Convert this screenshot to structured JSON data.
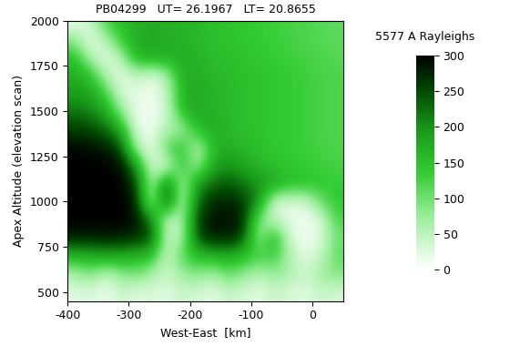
{
  "chart_data": {
    "type": "heatmap",
    "title": "PB04299   UT= 26.1967   LT= 20.8655",
    "xlabel": "West-East  [km]",
    "ylabel": "Apex Altitude (elevation scan)",
    "xlim": [
      -400,
      50
    ],
    "ylim": [
      450,
      2000
    ],
    "xticks": [
      -400,
      -300,
      -200,
      -100,
      0
    ],
    "yticks": [
      500,
      750,
      1000,
      1250,
      1500,
      1750,
      2000
    ],
    "x_edges": [
      -400,
      50
    ],
    "y_edges": [
      450,
      2050
    ],
    "cells": [
      [
        20,
        30,
        10,
        40,
        20,
        30,
        20,
        40,
        30,
        20,
        40,
        30,
        20,
        40,
        30,
        20,
        40,
        30
      ],
      [
        60,
        90,
        40,
        80,
        100,
        60,
        40,
        70,
        90,
        60,
        110,
        80,
        50,
        80,
        60,
        40,
        70,
        90
      ],
      [
        160,
        170,
        180,
        175,
        160,
        150,
        30,
        120,
        150,
        160,
        170,
        150,
        130,
        130,
        60,
        20,
        40,
        110
      ],
      [
        280,
        280,
        280,
        280,
        270,
        250,
        40,
        60,
        250,
        280,
        280,
        250,
        60,
        180,
        30,
        10,
        20,
        100
      ],
      [
        300,
        300,
        300,
        300,
        290,
        220,
        30,
        60,
        260,
        290,
        290,
        280,
        80,
        40,
        20,
        10,
        20,
        120
      ],
      [
        300,
        300,
        300,
        300,
        280,
        40,
        270,
        30,
        230,
        270,
        280,
        260,
        200,
        30,
        20,
        30,
        100,
        140
      ],
      [
        300,
        300,
        300,
        300,
        260,
        40,
        250,
        40,
        200,
        230,
        240,
        220,
        200,
        180,
        160,
        150,
        140,
        135
      ],
      [
        300,
        300,
        300,
        290,
        200,
        30,
        20,
        150,
        60,
        180,
        200,
        180,
        160,
        150,
        140,
        135,
        130,
        125
      ],
      [
        295,
        290,
        280,
        250,
        60,
        10,
        120,
        150,
        40,
        160,
        170,
        160,
        150,
        140,
        135,
        130,
        125,
        120
      ],
      [
        260,
        250,
        230,
        180,
        20,
        10,
        60,
        60,
        160,
        170,
        160,
        150,
        145,
        140,
        135,
        130,
        125,
        120
      ],
      [
        220,
        210,
        180,
        80,
        10,
        10,
        30,
        160,
        175,
        165,
        160,
        150,
        145,
        140,
        135,
        130,
        125,
        120
      ],
      [
        190,
        180,
        130,
        30,
        20,
        10,
        40,
        170,
        175,
        165,
        160,
        150,
        145,
        140,
        135,
        130,
        125,
        120
      ],
      [
        170,
        150,
        60,
        10,
        50,
        20,
        60,
        175,
        170,
        160,
        155,
        150,
        145,
        140,
        135,
        130,
        125,
        120
      ],
      [
        150,
        60,
        10,
        60,
        170,
        180,
        175,
        170,
        165,
        155,
        150,
        145,
        140,
        135,
        130,
        125,
        120,
        115
      ],
      [
        80,
        10,
        60,
        140,
        170,
        175,
        170,
        165,
        160,
        150,
        145,
        140,
        135,
        130,
        125,
        120,
        115,
        110
      ],
      [
        10,
        40,
        130,
        150,
        170,
        175,
        170,
        165,
        160,
        150,
        145,
        140,
        135,
        130,
        125,
        120,
        115,
        110
      ]
    ],
    "colorbar": {
      "label": "5577 A Rayleighs",
      "range": [
        0,
        300
      ],
      "ticks": [
        0,
        50,
        100,
        150,
        200,
        250,
        300
      ]
    }
  }
}
